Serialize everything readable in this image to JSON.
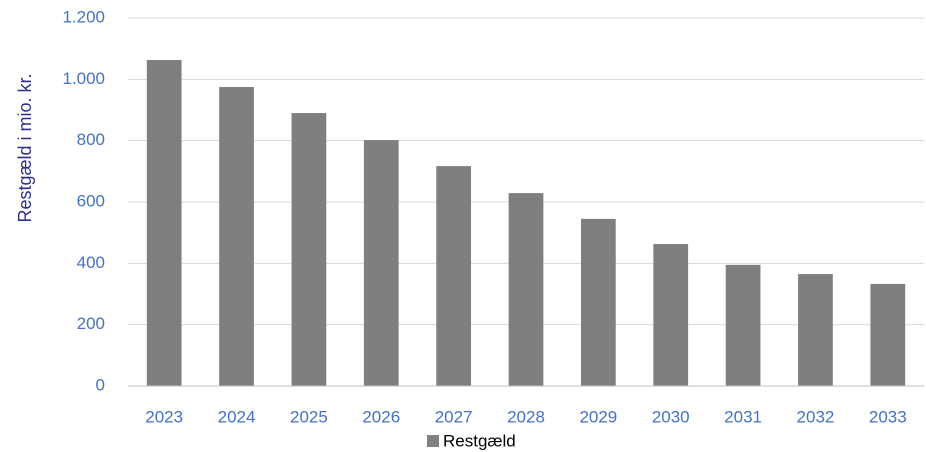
{
  "chart_data": {
    "type": "bar",
    "y_label": "Restgæld i mio. kr.",
    "categories": [
      "2023",
      "2024",
      "2025",
      "2026",
      "2027",
      "2028",
      "2029",
      "2030",
      "2031",
      "2032",
      "2033"
    ],
    "series": [
      {
        "name": "Restgæld",
        "color": "#7f7f7f",
        "values": [
          1063,
          975,
          890,
          802,
          717,
          629,
          545,
          463,
          395,
          365,
          333
        ]
      }
    ],
    "ylim": [
      0,
      1200
    ],
    "yticks": [
      0,
      200,
      400,
      600,
      800,
      {
        "value": 1000,
        "label": "1.000"
      },
      {
        "value": 1200,
        "label": "1.200"
      }
    ],
    "grid": true,
    "legend": "bottom"
  }
}
